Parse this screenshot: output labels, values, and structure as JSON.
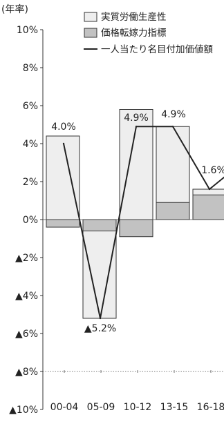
{
  "chart_data": {
    "type": "bar",
    "unit_label": "(年率)",
    "categories": [
      "00-04",
      "05-09",
      "10-12",
      "13-15",
      "16-18"
    ],
    "ylim": [
      -10,
      10
    ],
    "y_ticks": [
      {
        "value": 10,
        "label": "10%"
      },
      {
        "value": 8,
        "label": "8%"
      },
      {
        "value": 6,
        "label": "6%"
      },
      {
        "value": 4,
        "label": "4%"
      },
      {
        "value": 2,
        "label": "2%"
      },
      {
        "value": 0,
        "label": "0%"
      },
      {
        "value": -2,
        "label": "▲2%"
      },
      {
        "value": -4,
        "label": "▲4%"
      },
      {
        "value": -6,
        "label": "▲6%"
      },
      {
        "value": -8,
        "label": "▲8%"
      },
      {
        "value": -10,
        "label": "▲10%"
      }
    ],
    "series": [
      {
        "name": "実質労働生産性",
        "kind": "bar",
        "color": "#eeeeee",
        "values": [
          4.4,
          -5.2,
          5.8,
          4.9,
          1.6
        ]
      },
      {
        "name": "価格転嫁力指標",
        "kind": "bar",
        "color": "#c2c2c2",
        "values": [
          -0.4,
          -0.6,
          -0.9,
          0.9,
          1.3
        ]
      },
      {
        "name": "一人当たり名目付加価値額",
        "kind": "line",
        "color": "#222222",
        "values": [
          4.0,
          -5.2,
          4.9,
          4.9,
          1.6
        ]
      }
    ],
    "data_labels": [
      "4.0%",
      "▲5.2%",
      "4.9%",
      "4.9%",
      "1.6%"
    ],
    "legend_position": "top-right",
    "grid": false,
    "reference_line": {
      "value": -8
    }
  }
}
